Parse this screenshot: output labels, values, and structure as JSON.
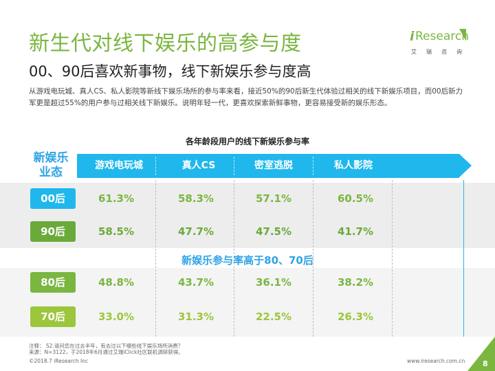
{
  "header": {
    "title": "新生代对线下娱乐的高参与度",
    "subtitle": "00、90后喜欢新事物，线下新娱乐参与度高",
    "description": "从游戏电玩城、真人CS、私人影院等新线下娱乐场所的参与率来看，接近50%的90后新生代体验过相关的线下新娱乐项目，而00后新力军更是超过55%的用户参与过相关线下新娱乐。说明年轻一代，更喜欢探索新鲜事物，更容易接受新的娱乐形态。"
  },
  "logo": {
    "i": "i",
    "name": "Research",
    "cn": "艾瑞咨询"
  },
  "colors": {
    "brand_green": "#7ab640",
    "accent_blue": "#1fb7ec",
    "age00": "#1fb7ec",
    "age90": "#6aaa3a",
    "age80": "#7ab640",
    "age70": "#9cc63b"
  },
  "chart_data": {
    "type": "table",
    "title": "各年龄段用户的线下新娱乐参与率",
    "row_header": "新娱乐业态",
    "columns": [
      "游戏电玩城",
      "真人CS",
      "密室逃脱",
      "私人影院"
    ],
    "rows": [
      {
        "label": "00后",
        "values": [
          "61.3%",
          "58.3%",
          "57.1%",
          "60.5%"
        ]
      },
      {
        "label": "90后",
        "values": [
          "58.5%",
          "47.7%",
          "47.5%",
          "41.7%"
        ]
      },
      {
        "label": "80后",
        "values": [
          "48.8%",
          "43.7%",
          "36.1%",
          "38.2%"
        ]
      },
      {
        "label": "70后",
        "values": [
          "33.0%",
          "31.3%",
          "22.5%",
          "26.3%"
        ]
      }
    ],
    "annotation": "新娱乐参与率高于80、70后"
  },
  "row_header_lines": [
    "新娱乐",
    "业态"
  ],
  "footer": {
    "note_line1": "注释：  S2.请问您在过去半年，有去过以下哪些线下娱乐场所消费？",
    "note_line2": "来源：N=3122，于2018年6月通过艾瑞iClick社区联机调研获得。",
    "copyright": "©2018.7 iResearch Inc",
    "website": "www.iresearch.com.cn",
    "page": "8"
  }
}
